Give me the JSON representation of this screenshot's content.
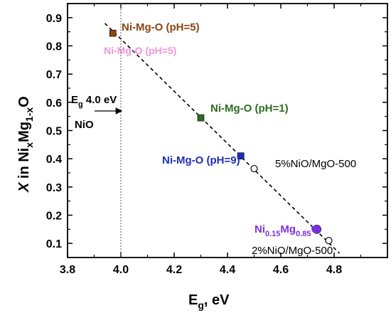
{
  "chart_data": {
    "type": "scatter",
    "xlabel": {
      "main": "E",
      "sub": "g",
      "tail": ", eV"
    },
    "ylabel": {
      "lead": "X",
      "mid": " in Ni",
      "sub1": "x",
      "mid2": "Mg",
      "sub2": "1-x",
      "tail": "O"
    },
    "xlim": [
      3.8,
      5.0
    ],
    "ylim": [
      0.05,
      0.95
    ],
    "x_ticks": [
      "3.8",
      "4.0",
      "4.2",
      "4.4",
      "4.6",
      "4.8"
    ],
    "y_ticks": [
      "0.1",
      "0.2",
      "0.3",
      "0.4",
      "0.5",
      "0.6",
      "0.7",
      "0.8",
      "0.9"
    ],
    "grid": false,
    "series": [
      {
        "name": "Ni-Mg-O (pH=5)",
        "color": "#8B4513",
        "marker": "square",
        "points": [
          {
            "x": 3.97,
            "y": 0.845
          }
        ]
      },
      {
        "name": "Ni-Mg-O (pH=1)",
        "color": "#2E6B1F",
        "marker": "square",
        "points": [
          {
            "x": 4.3,
            "y": 0.545
          }
        ]
      },
      {
        "name": "Ni-Mg-O (pH=9)",
        "color": "#1F2FB5",
        "marker": "square",
        "points": [
          {
            "x": 4.45,
            "y": 0.41
          }
        ]
      },
      {
        "name": "5%NiO/MgO-500",
        "color": "#000000",
        "marker": "open-circle",
        "points": [
          {
            "x": 4.5,
            "y": 0.365
          }
        ]
      },
      {
        "name": "Ni0.15Mg0.85O",
        "color": "#7B2FE0",
        "marker": "filled-circle",
        "points": [
          {
            "x": 4.735,
            "y": 0.15
          }
        ]
      },
      {
        "name": "2%NiO/MgO-500",
        "color": "#000000",
        "marker": "open-circle",
        "points": [
          {
            "x": 4.78,
            "y": 0.11
          }
        ]
      }
    ],
    "fit_line": {
      "x": [
        3.94,
        4.82
      ],
      "y": [
        0.88,
        0.065
      ]
    },
    "reference_line": {
      "x": 4.0
    },
    "annotations": {
      "eg_label": {
        "main": "E",
        "sub": "g",
        "tail": " 4.0 eV"
      },
      "nio_label": "NiO",
      "pH5": "Ni-Mg-O (pH=5)",
      "pH5_faded": "Ni-Mg-O (pH=5)",
      "pH1": "Ni-Mg-O (pH=1)",
      "pH9": "Ni-Mg-O (pH=9)",
      "pct5": "5%NiO/MgO-500",
      "pct2": "2%NiO/MgO-500",
      "nimg": {
        "a": "Ni",
        "a_sub": "0.15",
        "b": "Mg",
        "b_sub": "0.85",
        "c": "O"
      }
    }
  }
}
